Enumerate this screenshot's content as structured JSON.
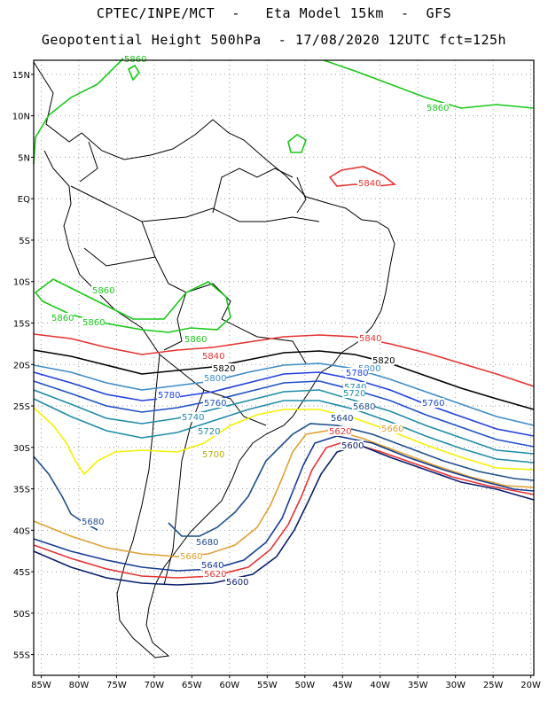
{
  "header": {
    "line1": "CPTEC/INPE/MCT  -   Eta Model 15km  -  GFS",
    "line2": "Geopotential Height 500hPa  - 17/08/2020 12UTC fct=125h"
  },
  "map": {
    "lat_labels": [
      "15N",
      "10N",
      "5N",
      "EQ",
      "5S",
      "10S",
      "15S",
      "20S",
      "25S",
      "30S",
      "35S",
      "40S",
      "45S",
      "50S",
      "55S"
    ],
    "lon_labels": [
      "85W",
      "80W",
      "75W",
      "70W",
      "65W",
      "60W",
      "55W",
      "50W",
      "45W",
      "40W",
      "35W",
      "30W",
      "25W",
      "20W"
    ],
    "contour_colors": {
      "5600": "#0a1f6e",
      "5620": "#e83232",
      "5640": "#143c96",
      "5660": "#e0a030",
      "5680": "#1e4e8c",
      "5700": "#f5f000",
      "5720": "#1e8ca8",
      "5740": "#1e8ca8",
      "5760": "#1e50c8",
      "5780": "#2040e0",
      "5800": "#3c8cc8",
      "5820": "#000000",
      "5840": "#e83232",
      "5860": "#18c818"
    },
    "contour_labels": [
      {
        "text": "5860",
        "color": "#18c818"
      },
      {
        "text": "5860",
        "color": "#18c818"
      },
      {
        "text": "5860",
        "color": "#18c818"
      },
      {
        "text": "5860",
        "color": "#18c818"
      },
      {
        "text": "5860",
        "color": "#18c818"
      },
      {
        "text": "5860",
        "color": "#18c818"
      },
      {
        "text": "5840",
        "color": "#e83232"
      },
      {
        "text": "5840",
        "color": "#e83232"
      },
      {
        "text": "5840",
        "color": "#e83232"
      },
      {
        "text": "5820",
        "color": "#000000"
      },
      {
        "text": "5820",
        "color": "#000000"
      },
      {
        "text": "5800",
        "color": "#3c8cc8"
      },
      {
        "text": "5800",
        "color": "#3c8cc8"
      },
      {
        "text": "5780",
        "color": "#2040e0"
      },
      {
        "text": "5780",
        "color": "#2040e0"
      },
      {
        "text": "5760",
        "color": "#1e50c8"
      },
      {
        "text": "5760",
        "color": "#1e50c8"
      },
      {
        "text": "5740",
        "color": "#1e8ca8"
      },
      {
        "text": "5740",
        "color": "#1e8ca8"
      },
      {
        "text": "5720",
        "color": "#1e8ca8"
      },
      {
        "text": "5720",
        "color": "#1e8ca8"
      },
      {
        "text": "5700",
        "color": "#b8b000"
      },
      {
        "text": "5680",
        "color": "#1e4e8c"
      },
      {
        "text": "5680",
        "color": "#1e4e8c"
      },
      {
        "text": "5680",
        "color": "#1e4e8c"
      },
      {
        "text": "5660",
        "color": "#e0a030"
      },
      {
        "text": "5660",
        "color": "#e0a030"
      },
      {
        "text": "5640",
        "color": "#143c96"
      },
      {
        "text": "5640",
        "color": "#143c96"
      },
      {
        "text": "5620",
        "color": "#e83232"
      },
      {
        "text": "5620",
        "color": "#e83232"
      },
      {
        "text": "5600",
        "color": "#0a1f6e"
      },
      {
        "text": "5600",
        "color": "#0a1f6e"
      }
    ]
  }
}
